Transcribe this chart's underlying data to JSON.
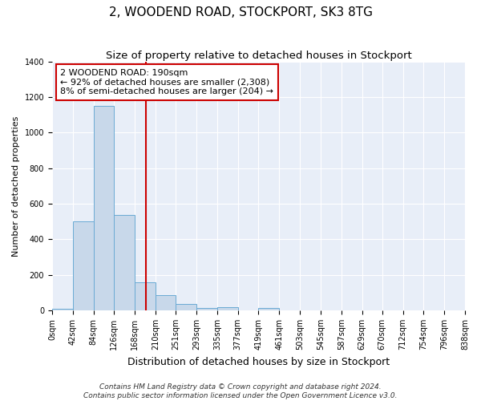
{
  "title": "2, WOODEND ROAD, STOCKPORT, SK3 8TG",
  "subtitle": "Size of property relative to detached houses in Stockport",
  "xlabel": "Distribution of detached houses by size in Stockport",
  "ylabel": "Number of detached properties",
  "bin_edges": [
    0,
    42,
    84,
    126,
    168,
    210,
    251,
    293,
    335,
    377,
    419,
    461,
    503,
    545,
    587,
    629,
    670,
    712,
    754,
    796,
    838
  ],
  "bar_heights": [
    10,
    500,
    1150,
    535,
    160,
    85,
    35,
    15,
    20,
    0,
    12,
    0,
    0,
    0,
    0,
    0,
    0,
    0,
    0,
    0
  ],
  "bar_color": "#c8d8ea",
  "bar_edgecolor": "#6aaad4",
  "vline_x": 190,
  "vline_color": "#cc0000",
  "annotation_lines": [
    "2 WOODEND ROAD: 190sqm",
    "← 92% of detached houses are smaller (2,308)",
    "8% of semi-detached houses are larger (204) →"
  ],
  "xlim": [
    0,
    838
  ],
  "ylim": [
    0,
    1400
  ],
  "yticks": [
    0,
    200,
    400,
    600,
    800,
    1000,
    1200,
    1400
  ],
  "xtick_labels": [
    "0sqm",
    "42sqm",
    "84sqm",
    "126sqm",
    "168sqm",
    "210sqm",
    "251sqm",
    "293sqm",
    "335sqm",
    "377sqm",
    "419sqm",
    "461sqm",
    "503sqm",
    "545sqm",
    "587sqm",
    "629sqm",
    "670sqm",
    "712sqm",
    "754sqm",
    "796sqm",
    "838sqm"
  ],
  "background_color": "#e8eef8",
  "grid_color": "#ffffff",
  "footer_lines": [
    "Contains HM Land Registry data © Crown copyright and database right 2024.",
    "Contains public sector information licensed under the Open Government Licence v3.0."
  ],
  "title_fontsize": 11,
  "subtitle_fontsize": 9.5,
  "xlabel_fontsize": 9,
  "ylabel_fontsize": 8,
  "tick_fontsize": 7,
  "annotation_fontsize": 8,
  "footer_fontsize": 6.5
}
